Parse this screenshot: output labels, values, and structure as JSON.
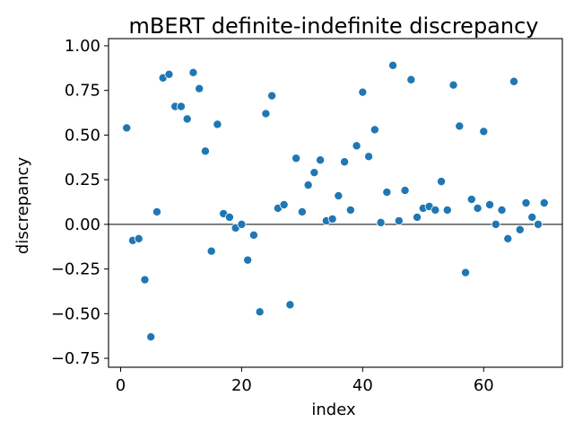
{
  "chart_data": {
    "type": "scatter",
    "title": "mBERT definite-indefinite discrepancy",
    "xlabel": "index",
    "ylabel": "discrepancy",
    "xlim": [
      -2,
      73
    ],
    "ylim": [
      -0.8,
      1.04
    ],
    "xticks": [
      0,
      20,
      40,
      60
    ],
    "xtick_labels": [
      "0",
      "20",
      "40",
      "60"
    ],
    "yticks": [
      -0.75,
      -0.5,
      -0.25,
      0.0,
      0.25,
      0.5,
      0.75,
      1.0
    ],
    "ytick_labels": [
      "−0.75",
      "−0.50",
      "−0.25",
      "0.00",
      "0.25",
      "0.50",
      "0.75",
      "1.00"
    ],
    "reference_line_y": 0,
    "grid": false,
    "marker_color": "#1f77b4",
    "points": [
      {
        "x": 1,
        "y": 0.54
      },
      {
        "x": 2,
        "y": -0.09
      },
      {
        "x": 3,
        "y": -0.08
      },
      {
        "x": 4,
        "y": -0.31
      },
      {
        "x": 5,
        "y": -0.63
      },
      {
        "x": 6,
        "y": 0.07
      },
      {
        "x": 7,
        "y": 0.82
      },
      {
        "x": 8,
        "y": 0.84
      },
      {
        "x": 9,
        "y": 0.66
      },
      {
        "x": 10,
        "y": 0.66
      },
      {
        "x": 11,
        "y": 0.59
      },
      {
        "x": 12,
        "y": 0.85
      },
      {
        "x": 13,
        "y": 0.76
      },
      {
        "x": 14,
        "y": 0.41
      },
      {
        "x": 15,
        "y": -0.15
      },
      {
        "x": 16,
        "y": 0.56
      },
      {
        "x": 17,
        "y": 0.06
      },
      {
        "x": 18,
        "y": 0.04
      },
      {
        "x": 19,
        "y": -0.02
      },
      {
        "x": 20,
        "y": 0.0
      },
      {
        "x": 21,
        "y": -0.2
      },
      {
        "x": 22,
        "y": -0.06
      },
      {
        "x": 23,
        "y": -0.49
      },
      {
        "x": 24,
        "y": 0.62
      },
      {
        "x": 25,
        "y": 0.72
      },
      {
        "x": 26,
        "y": 0.09
      },
      {
        "x": 27,
        "y": 0.11
      },
      {
        "x": 28,
        "y": -0.45
      },
      {
        "x": 29,
        "y": 0.37
      },
      {
        "x": 30,
        "y": 0.07
      },
      {
        "x": 31,
        "y": 0.22
      },
      {
        "x": 32,
        "y": 0.29
      },
      {
        "x": 33,
        "y": 0.36
      },
      {
        "x": 34,
        "y": 0.02
      },
      {
        "x": 35,
        "y": 0.03
      },
      {
        "x": 36,
        "y": 0.16
      },
      {
        "x": 37,
        "y": 0.35
      },
      {
        "x": 38,
        "y": 0.08
      },
      {
        "x": 39,
        "y": 0.44
      },
      {
        "x": 40,
        "y": 0.74
      },
      {
        "x": 41,
        "y": 0.38
      },
      {
        "x": 42,
        "y": 0.53
      },
      {
        "x": 43,
        "y": 0.01
      },
      {
        "x": 44,
        "y": 0.18
      },
      {
        "x": 45,
        "y": 0.89
      },
      {
        "x": 46,
        "y": 0.02
      },
      {
        "x": 47,
        "y": 0.19
      },
      {
        "x": 48,
        "y": 0.81
      },
      {
        "x": 49,
        "y": 0.04
      },
      {
        "x": 50,
        "y": 0.09
      },
      {
        "x": 51,
        "y": 0.1
      },
      {
        "x": 52,
        "y": 0.08
      },
      {
        "x": 53,
        "y": 0.24
      },
      {
        "x": 54,
        "y": 0.08
      },
      {
        "x": 55,
        "y": 0.78
      },
      {
        "x": 56,
        "y": 0.55
      },
      {
        "x": 57,
        "y": -0.27
      },
      {
        "x": 58,
        "y": 0.14
      },
      {
        "x": 59,
        "y": 0.09
      },
      {
        "x": 60,
        "y": 0.52
      },
      {
        "x": 61,
        "y": 0.11
      },
      {
        "x": 62,
        "y": 0.0
      },
      {
        "x": 63,
        "y": 0.08
      },
      {
        "x": 64,
        "y": -0.08
      },
      {
        "x": 65,
        "y": 0.8
      },
      {
        "x": 66,
        "y": -0.03
      },
      {
        "x": 67,
        "y": 0.12
      },
      {
        "x": 68,
        "y": 0.04
      },
      {
        "x": 69,
        "y": 0.0
      },
      {
        "x": 70,
        "y": 0.12
      }
    ]
  }
}
